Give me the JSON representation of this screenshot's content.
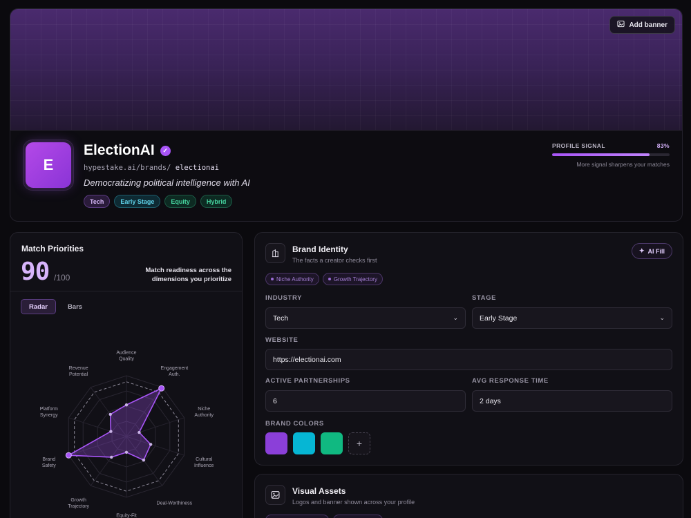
{
  "hero": {
    "add_banner_label": "Add banner",
    "avatar_letter": "E",
    "brand_name": "ElectionAI",
    "handle_prefix": "hypestake.ai/brands/",
    "handle_slug": "electionai",
    "tagline": "Democratizing political intelligence with AI",
    "tags": [
      "Tech",
      "Early Stage",
      "Equity",
      "Hybrid"
    ],
    "signal_label": "PROFILE SIGNAL",
    "signal_value": "83%",
    "signal_fraction": 0.83,
    "signal_note": "More signal sharpens your matches"
  },
  "match": {
    "title": "Match Priorities",
    "score": "90",
    "score_of": "/100",
    "readiness": "Match readiness across the dimensions you prioritize",
    "toggle": [
      "Radar",
      "Bars"
    ],
    "active_toggle": "Radar",
    "radar_labels": [
      "Audience Quality",
      "Engagement Auth.",
      "Niche Authority",
      "Cultural Influence",
      "Deal-Worthiness",
      "Equity-Fit Score",
      "Growth Trajectory",
      "Brand Safety",
      "Platform Synergy",
      "Revenue Potential"
    ],
    "radar_values": [
      0.52,
      0.98,
      0.22,
      0.42,
      0.48,
      0.26,
      0.42,
      1.0,
      0.27,
      0.45
    ],
    "radar_target": [
      0.9,
      0.9,
      0.9,
      0.9,
      0.9,
      0.9,
      0.9,
      0.9,
      0.9,
      0.9
    ]
  },
  "identity": {
    "title": "Brand Identity",
    "subtitle": "The facts a creator checks first",
    "ai_fill_label": "AI Fill",
    "chips": [
      "Niche Authority",
      "Growth Trajectory"
    ],
    "industry_label": "INDUSTRY",
    "industry_value": "Tech",
    "stage_label": "STAGE",
    "stage_value": "Early Stage",
    "website_label": "WEBSITE",
    "website_value": "https://electionai.com",
    "partnerships_label": "ACTIVE PARTNERSHIPS",
    "partnerships_value": "6",
    "response_label": "AVG RESPONSE TIME",
    "response_value": "2 days",
    "colors_label": "BRAND COLORS",
    "colors": [
      "#8b3fd9",
      "#06b6d4",
      "#10b981"
    ],
    "add_color": "+"
  },
  "assets": {
    "title": "Visual Assets",
    "subtitle": "Logos and banner shown across your profile"
  },
  "colors": {
    "accent": "#a855f7",
    "cyan": "#06b6d4",
    "green": "#10b981"
  }
}
